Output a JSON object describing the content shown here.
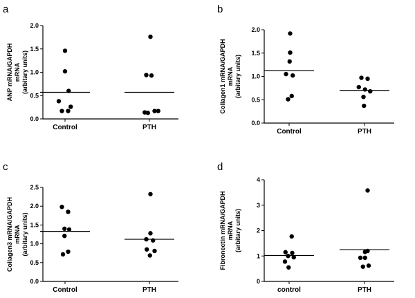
{
  "chart_data": [
    {
      "panel": "a",
      "type": "scatter",
      "categories": [
        "Control",
        "PTH"
      ],
      "ylabel": [
        "ANP mRNA/GAPDH",
        "mRNA",
        "(arbitary units)"
      ],
      "ylim": [
        0,
        2.0
      ],
      "yticks": [
        "0.0",
        "0.5",
        "1.0",
        "1.5",
        "2.0"
      ],
      "ytick_values": [
        0,
        0.5,
        1.0,
        1.5,
        2.0
      ],
      "points": [
        {
          "category": 0,
          "values": [
            1.46,
            1.02,
            0.6,
            0.38,
            0.26,
            0.17,
            0.17
          ],
          "jitter": [
            0,
            0,
            0.35,
            -0.6,
            0.55,
            -0.3,
            0.3
          ]
        },
        {
          "category": 1,
          "values": [
            1.76,
            0.94,
            0.93,
            0.17,
            0.14,
            0.13,
            0.17
          ],
          "jitter": [
            0.1,
            -0.3,
            0.2,
            0.5,
            -0.45,
            -0.15,
            0.85
          ]
        }
      ],
      "means": [
        0.57,
        0.57
      ]
    },
    {
      "panel": "b",
      "type": "scatter",
      "categories": [
        "Control",
        "PTH"
      ],
      "ylabel": [
        "Collagen1 mRNA/GAPDH",
        "mRNA",
        "(arbitary units)"
      ],
      "ylim": [
        0,
        2.0
      ],
      "yticks": [
        "0.0",
        "0.5",
        "1.0",
        "1.5",
        "2.0"
      ],
      "ytick_values": [
        0,
        0.5,
        1.0,
        1.5,
        2.0
      ],
      "points": [
        {
          "category": 0,
          "values": [
            1.92,
            1.51,
            1.32,
            1.05,
            1.02,
            0.58,
            0.51
          ],
          "jitter": [
            0.1,
            0.1,
            0.05,
            -0.3,
            0.35,
            0.25,
            -0.1
          ]
        },
        {
          "category": 1,
          "values": [
            0.97,
            0.95,
            0.77,
            0.72,
            0.68,
            0.56,
            0.37
          ],
          "jitter": [
            -0.3,
            0.3,
            -0.55,
            0.05,
            0.55,
            -0.1,
            -0.05
          ]
        }
      ],
      "means": [
        1.12,
        0.7
      ]
    },
    {
      "panel": "c",
      "type": "scatter",
      "categories": [
        "Control",
        "PTH"
      ],
      "ylabel": [
        "Collagen3 mRNA/GAPDH",
        "mRNA",
        "(arbitary units)"
      ],
      "ylim": [
        0,
        2.5
      ],
      "yticks": [
        "0.0",
        "0.5",
        "1.0",
        "1.5",
        "2.0",
        "2.5"
      ],
      "ytick_values": [
        0,
        0.5,
        1.0,
        1.5,
        2.0,
        2.5
      ],
      "points": [
        {
          "category": 0,
          "values": [
            1.98,
            1.85,
            1.4,
            1.38,
            1.21,
            0.79,
            0.72
          ],
          "jitter": [
            -0.3,
            0.3,
            -0.05,
            0.4,
            -0.05,
            0.3,
            -0.2
          ]
        },
        {
          "category": 1,
          "values": [
            2.32,
            1.28,
            1.12,
            1.09,
            0.85,
            0.81,
            0.69
          ],
          "jitter": [
            0.1,
            0.1,
            -0.3,
            0.35,
            -0.25,
            0.5,
            0.05
          ]
        }
      ],
      "means": [
        1.33,
        1.12
      ]
    },
    {
      "panel": "d",
      "type": "scatter",
      "categories": [
        "control",
        "PTH"
      ],
      "ylabel": [
        "Fibronectin mRNA/GAPDH",
        "mRNA",
        "(arbitary units)"
      ],
      "ylim": [
        0,
        4
      ],
      "yticks": [
        "0",
        "1",
        "2",
        "3",
        "4"
      ],
      "ytick_values": [
        0,
        1,
        2,
        3,
        4
      ],
      "points": [
        {
          "category": 0,
          "values": [
            1.77,
            1.15,
            1.12,
            1.0,
            0.95,
            0.78,
            0.55
          ],
          "jitter": [
            0.25,
            -0.35,
            0.3,
            -0.1,
            0.45,
            -0.4,
            -0.05
          ]
        },
        {
          "category": 1,
          "values": [
            3.58,
            1.2,
            1.16,
            0.93,
            0.93,
            0.62,
            0.58
          ],
          "jitter": [
            0.3,
            0.3,
            0.05,
            -0.4,
            0.05,
            0.4,
            -0.15
          ]
        }
      ],
      "means": [
        1.02,
        1.25
      ]
    }
  ]
}
